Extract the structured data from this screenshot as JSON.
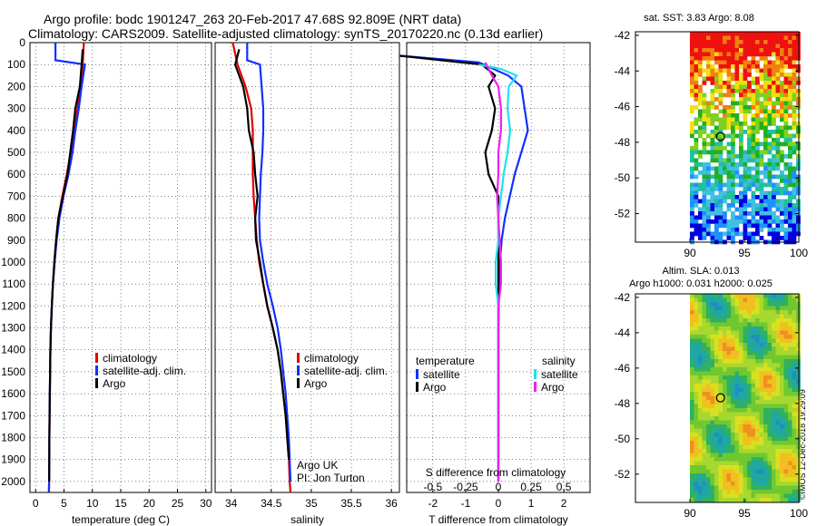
{
  "title": {
    "line1": "Argo profile: bodc 1901247_263 20-Feb-2017 47.68S 92.809E (NRT data)",
    "line2": "Climatology: CARS2009. Satellite-adjusted climatology: synTS_20170220.nc (0.13d earlier)"
  },
  "colors": {
    "climatology": "#e00000",
    "satellite": "#1030ff",
    "argo": "#000000",
    "satellite_salinity": "#20e0f0",
    "argo_salinity": "#f020f0"
  },
  "chart_data": [
    {
      "type": "line",
      "xlabel": "temperature (deg C)",
      "ylabel": "",
      "xlim": [
        -1,
        31
      ],
      "ylim": [
        2050,
        0
      ],
      "xticks": [
        0,
        5,
        10,
        15,
        20,
        25,
        30
      ],
      "yticks": [
        0,
        100,
        200,
        300,
        400,
        500,
        600,
        700,
        800,
        900,
        1000,
        1100,
        1200,
        1300,
        1400,
        1500,
        1600,
        1700,
        1800,
        1900,
        2000
      ],
      "grid": true,
      "legend": [
        "climatology",
        "satellite-adj. clim.",
        "Argo"
      ],
      "series": [
        {
          "name": "climatology",
          "x": [
            8.5,
            8.3,
            8.0,
            7.4,
            6.8,
            6.2,
            5.5,
            4.7,
            4.0,
            3.6,
            3.3,
            3.05,
            2.85,
            2.7,
            2.6,
            2.55,
            2.5,
            2.45,
            2.42,
            2.4,
            2.38,
            2.35
          ],
          "y": [
            0,
            100,
            200,
            300,
            400,
            500,
            600,
            700,
            800,
            900,
            1000,
            1100,
            1200,
            1300,
            1400,
            1500,
            1600,
            1700,
            1800,
            1900,
            2000,
            2050
          ]
        },
        {
          "name": "satellite-adj. clim.",
          "x": [
            3.5,
            3.5,
            8.7,
            8.1,
            7.6,
            7.0,
            6.5,
            5.8,
            4.9,
            4.2,
            3.7,
            3.35,
            3.05,
            2.85,
            2.7,
            2.6,
            2.55,
            2.5,
            2.45,
            2.42,
            2.4,
            2.38,
            2.35
          ],
          "y": [
            0,
            80,
            100,
            200,
            300,
            400,
            500,
            600,
            700,
            800,
            900,
            1000,
            1100,
            1200,
            1300,
            1400,
            1500,
            1600,
            1700,
            1800,
            1900,
            2000,
            2050
          ]
        },
        {
          "name": "Argo",
          "x": [
            8.3,
            8.1,
            7.8,
            7.0,
            6.6,
            6.1,
            5.6,
            4.8,
            4.0,
            3.6,
            3.3,
            3.05,
            2.85,
            2.7,
            2.6,
            2.55,
            2.5,
            2.45,
            2.42,
            2.4,
            2.38
          ],
          "y": [
            30,
            100,
            200,
            300,
            400,
            500,
            600,
            700,
            800,
            900,
            1000,
            1100,
            1200,
            1300,
            1400,
            1500,
            1600,
            1700,
            1800,
            1900,
            2000
          ]
        }
      ]
    },
    {
      "type": "line",
      "xlabel": "salinity",
      "ylabel": "",
      "xlim": [
        33.8,
        36.1
      ],
      "ylim": [
        2050,
        0
      ],
      "xticks": [
        34,
        34.5,
        35,
        35.5,
        36
      ],
      "grid": true,
      "legend": [
        "climatology",
        "satellite-adj. clim.",
        "Argo"
      ],
      "annotations": [
        "Argo UK",
        "PI: Jon Turton"
      ],
      "series": [
        {
          "name": "climatology",
          "x": [
            34.02,
            34.08,
            34.18,
            34.25,
            34.27,
            34.27,
            34.27,
            34.28,
            34.3,
            34.32,
            34.35,
            34.4,
            34.45,
            34.52,
            34.58,
            34.62,
            34.65,
            34.68,
            34.7,
            34.72,
            34.73,
            34.74
          ],
          "y": [
            0,
            100,
            200,
            300,
            400,
            500,
            600,
            700,
            800,
            900,
            1000,
            1100,
            1200,
            1300,
            1400,
            1500,
            1600,
            1700,
            1800,
            1900,
            2000,
            2050
          ]
        },
        {
          "name": "satellite-adj. clim.",
          "x": [
            34.2,
            34.2,
            34.36,
            34.38,
            34.4,
            34.4,
            34.39,
            34.37,
            34.36,
            34.35,
            34.36,
            34.4,
            34.45,
            34.52,
            34.58,
            34.62,
            34.65,
            34.68,
            34.7,
            34.72,
            34.73,
            34.74
          ],
          "y": [
            0,
            80,
            100,
            200,
            300,
            400,
            500,
            600,
            700,
            800,
            900,
            1000,
            1100,
            1200,
            1300,
            1400,
            1500,
            1600,
            1700,
            1800,
            1900,
            2000
          ]
        },
        {
          "name": "Argo",
          "x": [
            34.1,
            34.05,
            34.15,
            34.2,
            34.22,
            34.28,
            34.3,
            34.33,
            34.3,
            34.31,
            34.36,
            34.4,
            34.45,
            34.52,
            34.58,
            34.62,
            34.65,
            34.68,
            34.7,
            34.72
          ],
          "y": [
            30,
            100,
            200,
            300,
            400,
            500,
            600,
            700,
            800,
            900,
            1000,
            1100,
            1200,
            1300,
            1400,
            1500,
            1600,
            1700,
            1800,
            1900
          ]
        }
      ]
    },
    {
      "type": "line",
      "xlabel": "T difference from climatology",
      "ylabel": "",
      "xlim": [
        -2.8,
        2.8
      ],
      "ylim": [
        2050,
        0
      ],
      "xticks": [
        -2,
        -1,
        0,
        1,
        2
      ],
      "secondary_xlabel": "S difference from climatology",
      "secondary_xticks": [
        -0.5,
        -0.25,
        0,
        0.25,
        0.5
      ],
      "grid": true,
      "legend_left_title": "temperature",
      "legend_right_title": "salinity",
      "legend": [
        "satellite",
        "Argo",
        "satellite",
        "Argo"
      ],
      "series": [
        {
          "name": "satellite",
          "quantity": "temperature",
          "x": [
            -3.0,
            -0.6,
            0.3,
            0.7,
            0.8,
            0.9,
            0.7,
            0.5,
            0.35,
            0.2,
            0.1,
            0.05,
            0.02,
            0.01,
            0.0,
            0.0,
            0.0,
            0.0,
            0.0,
            0.0
          ],
          "y": [
            60,
            90,
            150,
            200,
            300,
            400,
            500,
            600,
            700,
            800,
            900,
            1000,
            1100,
            1200,
            1300,
            1400,
            1500,
            1600,
            1800,
            2000
          ]
        },
        {
          "name": "Argo",
          "quantity": "temperature",
          "x": [
            -3.0,
            -0.5,
            -0.1,
            -0.3,
            -0.1,
            -0.2,
            -0.4,
            -0.3,
            0.0,
            0.0,
            0.0,
            0.0,
            0.0,
            0.0,
            0.0,
            0.0,
            0.0,
            0.0,
            0.0
          ],
          "y": [
            60,
            100,
            150,
            200,
            300,
            400,
            500,
            600,
            700,
            800,
            900,
            1000,
            1100,
            1200,
            1300,
            1400,
            1600,
            1800,
            2000
          ]
        },
        {
          "name": "satellite",
          "quantity": "salinity",
          "x": [
            -0.15,
            0.02,
            0.14,
            0.08,
            0.07,
            0.09,
            0.07,
            0.04,
            0.02,
            0.0,
            0.0,
            -0.02,
            -0.02,
            0.0,
            0.0,
            0.0,
            0.0,
            0.0
          ],
          "y": [
            100,
            120,
            150,
            200,
            300,
            400,
            500,
            600,
            700,
            800,
            900,
            1000,
            1100,
            1200,
            1300,
            1500,
            1800,
            2000
          ]
        },
        {
          "name": "Argo",
          "quantity": "salinity",
          "x": [
            -0.1,
            -0.05,
            0.0,
            0.02,
            0.02,
            0.0,
            0.0,
            -0.01,
            0.0,
            0.01,
            0.02,
            0.02,
            0.0,
            0.0,
            0.0,
            0.0
          ],
          "y": [
            90,
            150,
            200,
            300,
            400,
            500,
            600,
            700,
            800,
            900,
            1000,
            1100,
            1200,
            1500,
            1800,
            2000
          ]
        }
      ]
    },
    {
      "type": "heatmap",
      "title": "sat. SST: 3.83 Argo: 8.08",
      "xlabel": "",
      "ylabel": "",
      "xlim": [
        85,
        100
      ],
      "ylim": [
        -53.6,
        -41.8
      ],
      "xticks": [
        90,
        95,
        100
      ],
      "yticks": [
        -42,
        -44,
        -46,
        -48,
        -50,
        -52
      ],
      "marker": {
        "lon": 92.809,
        "lat": -47.68
      }
    },
    {
      "type": "heatmap",
      "title": "Altim. SLA: 0.013",
      "subtitle": "Argo h1000: 0.031 h2000: 0.025",
      "xlabel": "",
      "ylabel": "",
      "xlim": [
        85,
        100
      ],
      "ylim": [
        -53.6,
        -41.8
      ],
      "xticks": [
        90,
        95,
        100
      ],
      "yticks": [
        -42,
        -44,
        -46,
        -48,
        -50,
        -52
      ],
      "marker": {
        "lon": 92.809,
        "lat": -47.68
      }
    }
  ],
  "credit": "©IMOS 12-Dec-2018 19:29:09"
}
